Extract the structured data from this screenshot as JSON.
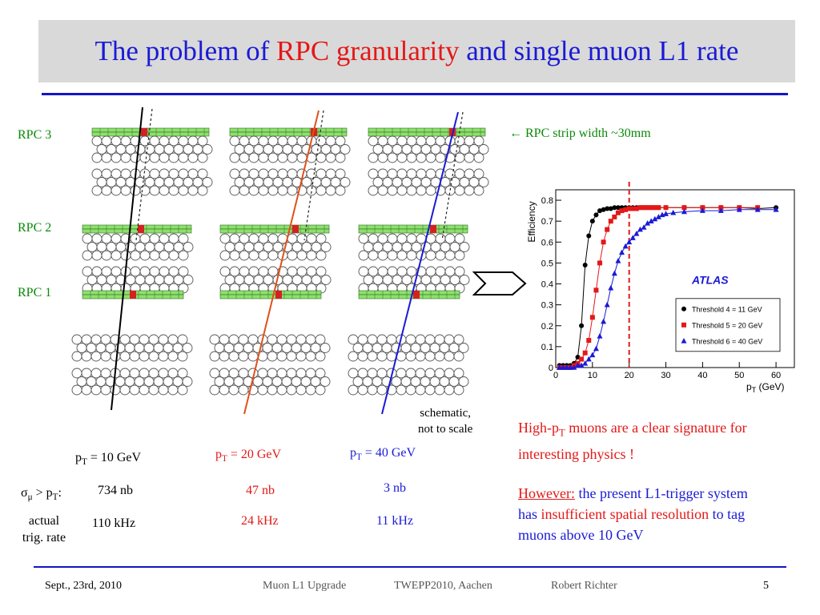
{
  "title": {
    "p1": "The problem of",
    "p2": "RPC granularity",
    "p3": "and single muon L1 rate"
  },
  "rpc_labels": [
    "RPC 3",
    "RPC 2",
    "RPC 1"
  ],
  "strip_note": "← RPC strip width ~30mm",
  "schematic_note": [
    "schematic,",
    "not to scale"
  ],
  "pt_cols": [
    {
      "p": "p",
      "sub": "T",
      "val": " = 10 GeV",
      "sigma": "734 nb",
      "rate": "110 kHz",
      "color": "#000000"
    },
    {
      "p": "p",
      "sub": "T",
      "val": " = 20 GeV",
      "sigma": "47 nb",
      "rate": "24 kHz",
      "color": "#e41818"
    },
    {
      "p": "p",
      "sub": "T",
      "val": " = 40 GeV",
      "sigma": "3 nb",
      "rate": "11 kHz",
      "color": "#1a1ad6"
    }
  ],
  "sigma_label": {
    "sym": "σ",
    "sub": "μ",
    "rest": " > p",
    "sub2": "T",
    "end": ":"
  },
  "rate_label": [
    "actual",
    "trig. rate"
  ],
  "text1": {
    "a": "High-p",
    "sub": "T",
    "b": " muons are a clear signature for",
    "c": "interesting physics !"
  },
  "text2": {
    "however": "However:",
    "l1": " the present L1-trigger system",
    "l2a": "has ",
    "l2b": "insufficient spatial resolution",
    "l2c": " to tag",
    "l3": "muons above 10 GeV"
  },
  "footer": {
    "date": "Sept., 23rd, 2010",
    "event1": "Muon L1 Upgrade",
    "event2": "TWEPP2010, Aachen",
    "author": "Robert Richter",
    "page": "5"
  },
  "chart_data": {
    "type": "scatter",
    "title": "",
    "xlabel": "p_T (GeV)",
    "ylabel": "Efficiency",
    "xlim": [
      0,
      65
    ],
    "ylim": [
      0,
      0.85
    ],
    "xticks": [
      0,
      10,
      20,
      30,
      40,
      50,
      60
    ],
    "yticks": [
      0,
      0.1,
      0.2,
      0.3,
      0.4,
      0.5,
      0.6,
      0.7,
      0.8
    ],
    "watermark": "ATLAS",
    "legend_position": "bottom-right",
    "threshold_line_x": 20,
    "series": [
      {
        "name": "Threshold 4 = 11 GeV",
        "color": "#000000",
        "marker": "circle",
        "x": [
          1,
          2,
          3,
          4,
          5,
          6,
          7,
          8,
          9,
          10,
          11,
          12,
          13,
          14,
          15,
          16,
          17,
          18,
          19,
          20,
          21,
          22,
          23,
          24,
          25,
          26,
          27,
          28,
          30,
          35,
          40,
          45,
          50,
          55,
          60
        ],
        "y": [
          0.01,
          0.01,
          0.01,
          0.01,
          0.02,
          0.05,
          0.2,
          0.49,
          0.63,
          0.7,
          0.73,
          0.75,
          0.755,
          0.76,
          0.76,
          0.765,
          0.765,
          0.765,
          0.765,
          0.765,
          0.765,
          0.765,
          0.765,
          0.765,
          0.765,
          0.765,
          0.765,
          0.765,
          0.765,
          0.765,
          0.765,
          0.765,
          0.765,
          0.76,
          0.765
        ]
      },
      {
        "name": "Threshold 5 = 20 GeV",
        "color": "#e41818",
        "marker": "square",
        "x": [
          1,
          2,
          3,
          4,
          5,
          6,
          7,
          8,
          9,
          10,
          11,
          12,
          13,
          14,
          15,
          16,
          17,
          18,
          19,
          20,
          21,
          22,
          23,
          24,
          25,
          26,
          27,
          28,
          30,
          35,
          40,
          45,
          50,
          55
        ],
        "y": [
          0.0,
          0.0,
          0.0,
          0.0,
          0.01,
          0.02,
          0.04,
          0.07,
          0.13,
          0.24,
          0.37,
          0.5,
          0.6,
          0.66,
          0.7,
          0.72,
          0.74,
          0.75,
          0.755,
          0.76,
          0.76,
          0.76,
          0.765,
          0.765,
          0.765,
          0.765,
          0.765,
          0.765,
          0.765,
          0.765,
          0.765,
          0.765,
          0.765,
          0.765
        ]
      },
      {
        "name": "Threshold 6 = 40 GeV",
        "color": "#1a1ad6",
        "marker": "triangle",
        "x": [
          1,
          2,
          3,
          4,
          5,
          6,
          7,
          8,
          9,
          10,
          11,
          12,
          13,
          14,
          15,
          16,
          17,
          18,
          19,
          20,
          21,
          22,
          23,
          24,
          25,
          26,
          27,
          28,
          29,
          30,
          32,
          35,
          40,
          45,
          50,
          55,
          60
        ],
        "y": [
          0.0,
          0.0,
          0.0,
          0.0,
          0.0,
          0.01,
          0.01,
          0.02,
          0.04,
          0.06,
          0.09,
          0.15,
          0.22,
          0.3,
          0.38,
          0.45,
          0.51,
          0.55,
          0.58,
          0.6,
          0.62,
          0.64,
          0.66,
          0.67,
          0.69,
          0.7,
          0.71,
          0.72,
          0.73,
          0.735,
          0.74,
          0.745,
          0.75,
          0.75,
          0.755,
          0.755,
          0.755
        ]
      }
    ]
  }
}
